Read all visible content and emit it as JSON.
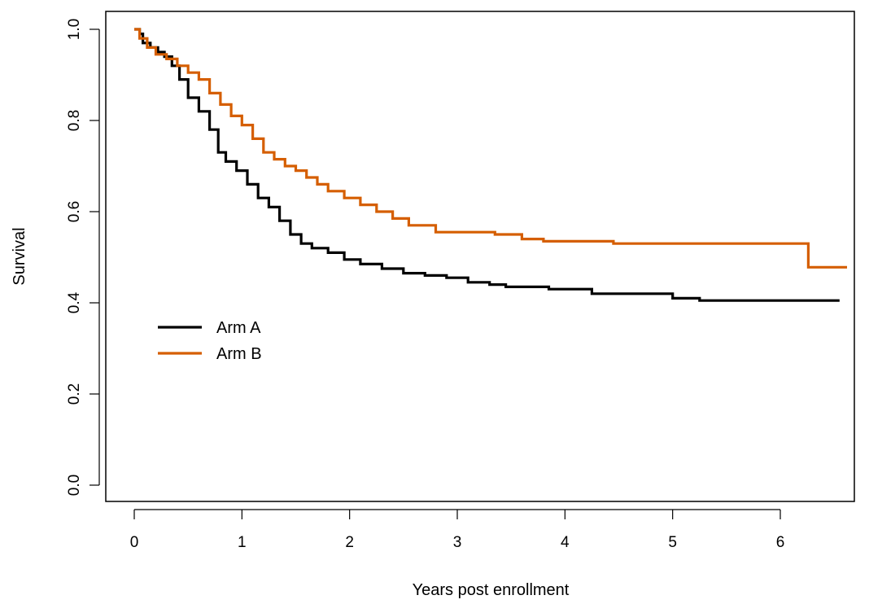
{
  "chart_data": {
    "type": "line",
    "subtype": "step",
    "xlabel": "Years post enrollment",
    "ylabel": "Survival",
    "xlim": [
      0,
      6.7
    ],
    "ylim": [
      0,
      1.0
    ],
    "x_ticks": [
      0,
      1,
      2,
      3,
      4,
      5,
      6
    ],
    "x_tick_labels": [
      "0",
      "1",
      "2",
      "3",
      "4",
      "5",
      "6"
    ],
    "y_ticks": [
      0.0,
      0.2,
      0.4,
      0.6,
      0.8,
      1.0
    ],
    "y_tick_labels": [
      "0.0",
      "0.2",
      "0.4",
      "0.6",
      "0.8",
      "1.0"
    ],
    "grid": false,
    "legend_position": "middle-left",
    "series": [
      {
        "name": "Arm A",
        "color": "#000000",
        "points": [
          [
            0,
            1.0
          ],
          [
            0.05,
            0.99
          ],
          [
            0.08,
            0.97
          ],
          [
            0.15,
            0.96
          ],
          [
            0.22,
            0.95
          ],
          [
            0.28,
            0.94
          ],
          [
            0.35,
            0.92
          ],
          [
            0.42,
            0.89
          ],
          [
            0.5,
            0.85
          ],
          [
            0.6,
            0.82
          ],
          [
            0.7,
            0.78
          ],
          [
            0.78,
            0.73
          ],
          [
            0.85,
            0.71
          ],
          [
            0.95,
            0.69
          ],
          [
            1.05,
            0.66
          ],
          [
            1.15,
            0.63
          ],
          [
            1.25,
            0.61
          ],
          [
            1.35,
            0.58
          ],
          [
            1.45,
            0.55
          ],
          [
            1.55,
            0.53
          ],
          [
            1.65,
            0.52
          ],
          [
            1.8,
            0.51
          ],
          [
            1.95,
            0.495
          ],
          [
            2.1,
            0.485
          ],
          [
            2.3,
            0.475
          ],
          [
            2.5,
            0.465
          ],
          [
            2.7,
            0.46
          ],
          [
            2.9,
            0.455
          ],
          [
            3.1,
            0.445
          ],
          [
            3.3,
            0.44
          ],
          [
            3.45,
            0.435
          ],
          [
            3.85,
            0.43
          ],
          [
            4.25,
            0.42
          ],
          [
            5.0,
            0.41
          ],
          [
            5.25,
            0.405
          ],
          [
            6.55,
            0.405
          ]
        ]
      },
      {
        "name": "Arm B",
        "color": "#D55E00",
        "points": [
          [
            0,
            1.0
          ],
          [
            0.05,
            0.98
          ],
          [
            0.12,
            0.96
          ],
          [
            0.2,
            0.945
          ],
          [
            0.3,
            0.935
          ],
          [
            0.4,
            0.92
          ],
          [
            0.5,
            0.905
          ],
          [
            0.6,
            0.89
          ],
          [
            0.7,
            0.86
          ],
          [
            0.8,
            0.835
          ],
          [
            0.9,
            0.81
          ],
          [
            1.0,
            0.79
          ],
          [
            1.1,
            0.76
          ],
          [
            1.2,
            0.73
          ],
          [
            1.3,
            0.715
          ],
          [
            1.4,
            0.7
          ],
          [
            1.5,
            0.69
          ],
          [
            1.6,
            0.675
          ],
          [
            1.7,
            0.66
          ],
          [
            1.8,
            0.645
          ],
          [
            1.95,
            0.63
          ],
          [
            2.1,
            0.615
          ],
          [
            2.25,
            0.6
          ],
          [
            2.4,
            0.585
          ],
          [
            2.55,
            0.57
          ],
          [
            2.8,
            0.555
          ],
          [
            3.35,
            0.55
          ],
          [
            3.6,
            0.54
          ],
          [
            3.8,
            0.535
          ],
          [
            4.45,
            0.53
          ],
          [
            6.25,
            0.53
          ],
          [
            6.26,
            0.478
          ],
          [
            6.62,
            0.478
          ]
        ]
      }
    ]
  }
}
